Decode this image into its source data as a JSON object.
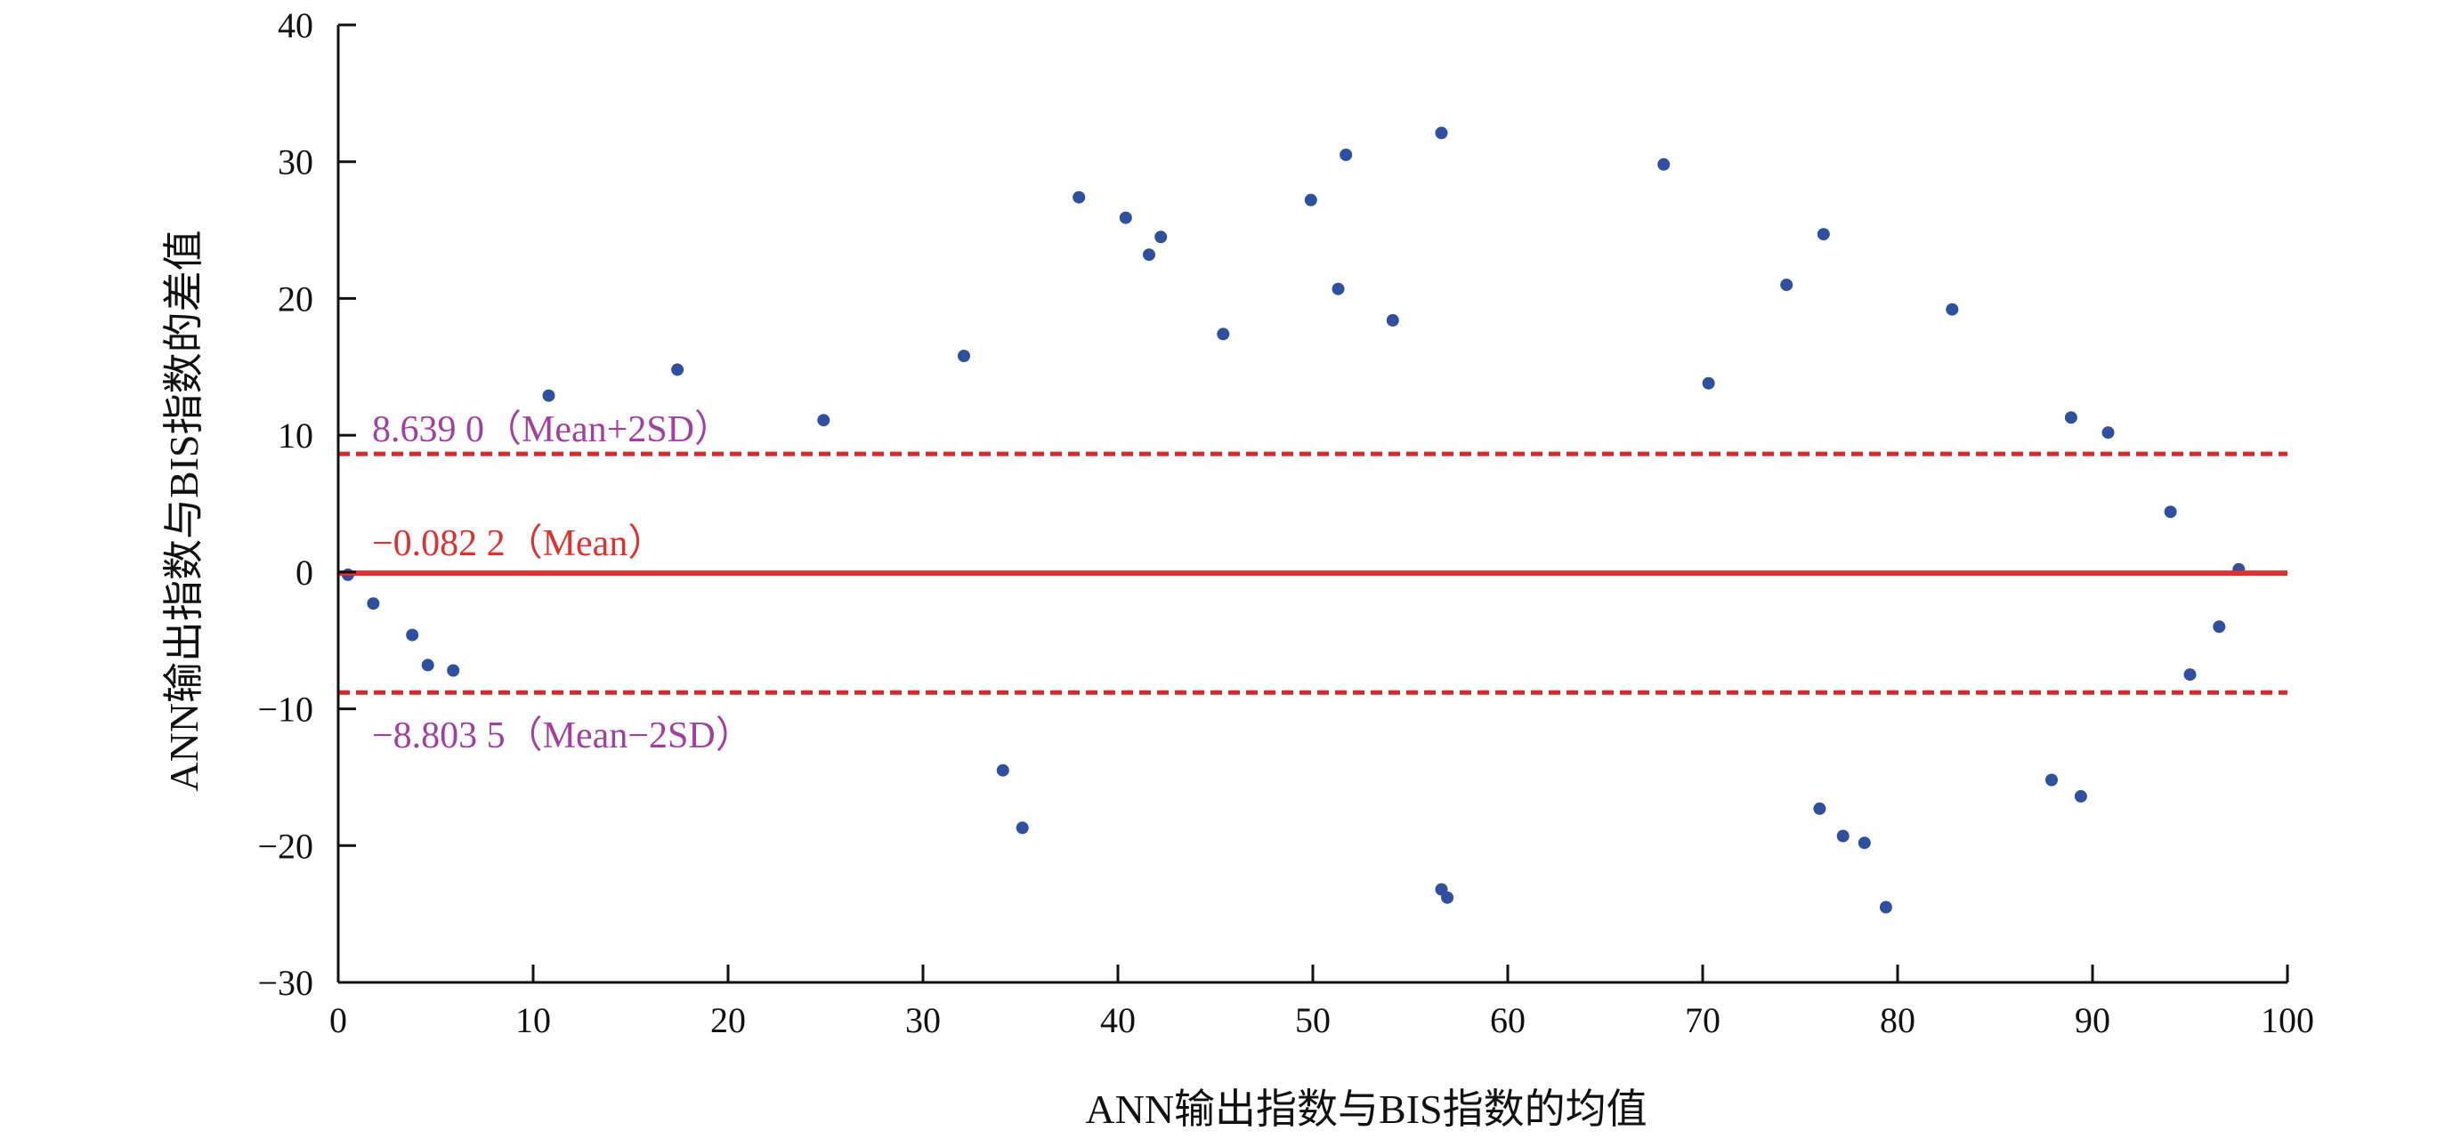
{
  "chart_data": {
    "type": "scatter",
    "title": "",
    "xlabel": "ANN输出指数与BIS指数的均值",
    "ylabel": "ANN输出指数与BIS指数的差值",
    "xlim": [
      0,
      100
    ],
    "ylim": [
      -30,
      40
    ],
    "xticks": [
      0,
      10,
      20,
      30,
      40,
      50,
      60,
      70,
      80,
      90,
      100
    ],
    "yticks": [
      -30,
      -20,
      -10,
      0,
      10,
      20,
      30,
      40
    ],
    "xtick_labels": [
      "0",
      "10",
      "20",
      "30",
      "40",
      "50",
      "60",
      "70",
      "80",
      "90",
      "100"
    ],
    "ytick_labels": [
      "−30",
      "−20",
      "−10",
      "0",
      "10",
      "20",
      "30",
      "40"
    ],
    "grid": false,
    "legend": "none",
    "colors": {
      "points": "#2f4f9f",
      "mean_line": "#e03030",
      "limit_lines": "#d42a2a",
      "mean_label": "#e03030",
      "limit_labels": "#a040a0"
    },
    "reference_lines": [
      {
        "y": 8.639,
        "style": "dashed",
        "label": "8.639 0（Mean+2SD）"
      },
      {
        "y": -0.0822,
        "style": "solid",
        "label": "−0.082 2（Mean）"
      },
      {
        "y": -8.8035,
        "style": "dashed",
        "label": "−8.803 5（Mean−2SD）"
      }
    ],
    "points_sample": [
      [
        0.5,
        -0.2
      ],
      [
        1.8,
        -2.3
      ],
      [
        3.8,
        -4.6
      ],
      [
        4.6,
        -6.8
      ],
      [
        5.9,
        -7.2
      ],
      [
        10.8,
        12.9
      ],
      [
        17.4,
        14.8
      ],
      [
        24.9,
        11.1
      ],
      [
        32.1,
        15.8
      ],
      [
        35.1,
        -18.7
      ],
      [
        34.1,
        -14.5
      ],
      [
        38.0,
        27.4
      ],
      [
        40.4,
        25.9
      ],
      [
        41.6,
        23.2
      ],
      [
        42.2,
        24.5
      ],
      [
        45.4,
        17.4
      ],
      [
        49.9,
        27.2
      ],
      [
        51.3,
        20.7
      ],
      [
        51.7,
        30.5
      ],
      [
        54.1,
        18.4
      ],
      [
        56.6,
        32.1
      ],
      [
        56.6,
        -23.2
      ],
      [
        56.9,
        -23.8
      ],
      [
        68.0,
        29.8
      ],
      [
        76.2,
        24.7
      ],
      [
        74.3,
        21.0
      ],
      [
        82.8,
        19.2
      ],
      [
        79.4,
        -24.5
      ],
      [
        78.3,
        -19.8
      ],
      [
        77.2,
        -19.3
      ],
      [
        76.0,
        -17.3
      ],
      [
        88.9,
        11.3
      ],
      [
        90.8,
        10.2
      ],
      [
        89.4,
        -16.4
      ],
      [
        87.9,
        -15.2
      ],
      [
        95.0,
        -7.5
      ],
      [
        96.5,
        -4.0
      ],
      [
        97.5,
        0.2
      ],
      [
        94.0,
        4.4
      ],
      [
        70.3,
        13.8
      ]
    ]
  }
}
